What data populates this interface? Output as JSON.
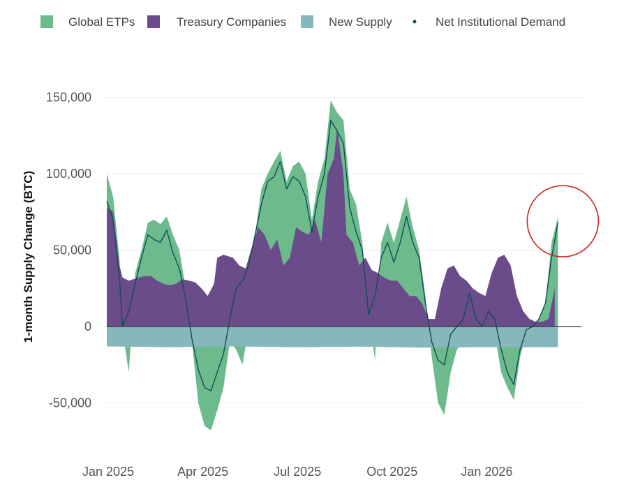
{
  "chart_data": {
    "type": "area",
    "ylabel": "1-month Supply Change (BTC)",
    "ylim": [
      -70000,
      160000
    ],
    "y_ticks": [
      {
        "value": 150000,
        "label": "150,000"
      },
      {
        "value": 100000,
        "label": "100,000"
      },
      {
        "value": 50000,
        "label": "50,000"
      },
      {
        "value": 0,
        "label": "0"
      },
      {
        "value": -50000,
        "label": "-50,000"
      }
    ],
    "x_ticks": [
      {
        "month": 0,
        "label": "Jan 2025"
      },
      {
        "month": 3,
        "label": "Apr 2025"
      },
      {
        "month": 6,
        "label": "Jul 2025"
      },
      {
        "month": 9,
        "label": "Oct 2025"
      },
      {
        "month": 12,
        "label": "Jan 2026"
      }
    ],
    "x_unit": "months since Jan 2025",
    "xlim": [
      0,
      15.5
    ],
    "legend": [
      {
        "name": "Global ETPs",
        "color": "#6dbb8d",
        "marker": "square"
      },
      {
        "name": "Treasury Companies",
        "color": "#6b4c8a",
        "marker": "square"
      },
      {
        "name": "New Supply",
        "color": "#86b7bd",
        "marker": "square"
      },
      {
        "name": "Net Institutional Demand",
        "color": "#0f4d52",
        "marker": "dot"
      }
    ],
    "series": [
      {
        "name": "Treasury Companies",
        "color": "#6b4c8a",
        "points": [
          [
            0,
            78000
          ],
          [
            0.2,
            75000
          ],
          [
            0.4,
            40000
          ],
          [
            0.5,
            32000
          ],
          [
            0.7,
            30000
          ],
          [
            1.0,
            32000
          ],
          [
            1.2,
            33000
          ],
          [
            1.4,
            33000
          ],
          [
            1.6,
            30000
          ],
          [
            1.8,
            28000
          ],
          [
            2.0,
            27000
          ],
          [
            2.2,
            28000
          ],
          [
            2.4,
            31000
          ],
          [
            2.6,
            30000
          ],
          [
            2.8,
            29000
          ],
          [
            3.0,
            25000
          ],
          [
            3.2,
            20000
          ],
          [
            3.4,
            28000
          ],
          [
            3.5,
            45000
          ],
          [
            3.7,
            47000
          ],
          [
            4.0,
            45000
          ],
          [
            4.2,
            40000
          ],
          [
            4.4,
            38000
          ],
          [
            4.6,
            52000
          ],
          [
            4.8,
            65000
          ],
          [
            5.0,
            60000
          ],
          [
            5.2,
            50000
          ],
          [
            5.4,
            57000
          ],
          [
            5.6,
            40000
          ],
          [
            5.8,
            45000
          ],
          [
            6.0,
            65000
          ],
          [
            6.2,
            62000
          ],
          [
            6.4,
            60000
          ],
          [
            6.6,
            70000
          ],
          [
            6.8,
            55000
          ],
          [
            7.0,
            100000
          ],
          [
            7.2,
            110000
          ],
          [
            7.3,
            130000
          ],
          [
            7.5,
            100000
          ],
          [
            7.6,
            60000
          ],
          [
            7.8,
            55000
          ],
          [
            8.0,
            40000
          ],
          [
            8.2,
            45000
          ],
          [
            8.4,
            37000
          ],
          [
            8.6,
            35000
          ],
          [
            8.8,
            32000
          ],
          [
            9.0,
            30000
          ],
          [
            9.2,
            30000
          ],
          [
            9.4,
            25000
          ],
          [
            9.6,
            20000
          ],
          [
            9.8,
            20000
          ],
          [
            10.0,
            15000
          ],
          [
            10.2,
            5000
          ],
          [
            10.4,
            5000
          ],
          [
            10.6,
            25000
          ],
          [
            10.8,
            38000
          ],
          [
            11.0,
            40000
          ],
          [
            11.2,
            33000
          ],
          [
            11.4,
            30000
          ],
          [
            11.6,
            25000
          ],
          [
            11.8,
            22000
          ],
          [
            12.0,
            20000
          ],
          [
            12.2,
            35000
          ],
          [
            12.4,
            45000
          ],
          [
            12.6,
            47000
          ],
          [
            12.8,
            40000
          ],
          [
            13.0,
            20000
          ],
          [
            13.2,
            10000
          ],
          [
            13.4,
            5000
          ],
          [
            13.6,
            3000
          ],
          [
            13.8,
            3000
          ],
          [
            14.0,
            5000
          ],
          [
            14.2,
            25000
          ]
        ]
      },
      {
        "name": "Global ETPs",
        "color": "#6dbb8d",
        "points": [
          [
            0,
            100000
          ],
          [
            0.2,
            85000
          ],
          [
            0.4,
            45000
          ],
          [
            0.5,
            -3000
          ],
          [
            0.7,
            -30000
          ],
          [
            0.9,
            35000
          ],
          [
            1.1,
            50000
          ],
          [
            1.3,
            68000
          ],
          [
            1.5,
            70000
          ],
          [
            1.7,
            67000
          ],
          [
            1.9,
            72000
          ],
          [
            2.1,
            60000
          ],
          [
            2.3,
            50000
          ],
          [
            2.5,
            25000
          ],
          [
            2.7,
            -10000
          ],
          [
            2.9,
            -50000
          ],
          [
            3.1,
            -65000
          ],
          [
            3.3,
            -68000
          ],
          [
            3.5,
            -55000
          ],
          [
            3.7,
            -40000
          ],
          [
            3.9,
            -10000
          ],
          [
            4.1,
            -15000
          ],
          [
            4.3,
            -25000
          ],
          [
            4.5,
            0
          ],
          [
            4.7,
            60000
          ],
          [
            4.9,
            90000
          ],
          [
            5.1,
            100000
          ],
          [
            5.3,
            108000
          ],
          [
            5.5,
            115000
          ],
          [
            5.7,
            95000
          ],
          [
            5.9,
            105000
          ],
          [
            6.1,
            108000
          ],
          [
            6.3,
            100000
          ],
          [
            6.5,
            70000
          ],
          [
            6.7,
            95000
          ],
          [
            6.9,
            110000
          ],
          [
            7.1,
            148000
          ],
          [
            7.3,
            140000
          ],
          [
            7.5,
            135000
          ],
          [
            7.7,
            90000
          ],
          [
            7.9,
            80000
          ],
          [
            8.1,
            55000
          ],
          [
            8.3,
            10000
          ],
          [
            8.5,
            -22000
          ],
          [
            8.7,
            55000
          ],
          [
            8.9,
            68000
          ],
          [
            9.1,
            55000
          ],
          [
            9.3,
            70000
          ],
          [
            9.5,
            85000
          ],
          [
            9.7,
            65000
          ],
          [
            9.9,
            50000
          ],
          [
            10.1,
            20000
          ],
          [
            10.3,
            -20000
          ],
          [
            10.5,
            -50000
          ],
          [
            10.7,
            -58000
          ],
          [
            10.9,
            -30000
          ],
          [
            11.1,
            -15000
          ],
          [
            11.3,
            -10000
          ],
          [
            11.5,
            25000
          ],
          [
            11.7,
            -8000
          ],
          [
            11.9,
            -12000
          ],
          [
            12.1,
            5000
          ],
          [
            12.3,
            -5000
          ],
          [
            12.5,
            -30000
          ],
          [
            12.7,
            -40000
          ],
          [
            12.9,
            -48000
          ],
          [
            13.1,
            -20000
          ],
          [
            13.3,
            -5000
          ],
          [
            13.5,
            -2000
          ],
          [
            13.7,
            5000
          ],
          [
            13.9,
            15000
          ],
          [
            14.1,
            55000
          ],
          [
            14.3,
            72000
          ]
        ]
      },
      {
        "name": "New Supply",
        "color": "#86b7bd",
        "points": [
          [
            0,
            -13000
          ],
          [
            2,
            -13500
          ],
          [
            4,
            -13000
          ],
          [
            6,
            -13500
          ],
          [
            8,
            -13200
          ],
          [
            10,
            -13800
          ],
          [
            12,
            -13500
          ],
          [
            14.3,
            -13500
          ]
        ]
      },
      {
        "name": "Net Institutional Demand",
        "color": "#0f4d52",
        "points": [
          [
            0,
            82000
          ],
          [
            0.2,
            70000
          ],
          [
            0.4,
            32000
          ],
          [
            0.5,
            0
          ],
          [
            0.7,
            10000
          ],
          [
            0.9,
            28000
          ],
          [
            1.1,
            45000
          ],
          [
            1.3,
            60000
          ],
          [
            1.5,
            57000
          ],
          [
            1.7,
            55000
          ],
          [
            1.9,
            63000
          ],
          [
            2.1,
            48000
          ],
          [
            2.3,
            38000
          ],
          [
            2.5,
            18000
          ],
          [
            2.7,
            -8000
          ],
          [
            2.9,
            -28000
          ],
          [
            3.1,
            -40000
          ],
          [
            3.3,
            -42000
          ],
          [
            3.5,
            -30000
          ],
          [
            3.7,
            -18000
          ],
          [
            3.9,
            5000
          ],
          [
            4.1,
            25000
          ],
          [
            4.3,
            30000
          ],
          [
            4.5,
            40000
          ],
          [
            4.7,
            60000
          ],
          [
            4.9,
            80000
          ],
          [
            5.1,
            95000
          ],
          [
            5.3,
            98000
          ],
          [
            5.5,
            108000
          ],
          [
            5.7,
            90000
          ],
          [
            5.9,
            98000
          ],
          [
            6.1,
            95000
          ],
          [
            6.3,
            85000
          ],
          [
            6.5,
            62000
          ],
          [
            6.7,
            85000
          ],
          [
            6.9,
            100000
          ],
          [
            7.1,
            135000
          ],
          [
            7.3,
            128000
          ],
          [
            7.5,
            120000
          ],
          [
            7.7,
            78000
          ],
          [
            7.9,
            62000
          ],
          [
            8.1,
            50000
          ],
          [
            8.3,
            8000
          ],
          [
            8.5,
            20000
          ],
          [
            8.7,
            45000
          ],
          [
            8.9,
            55000
          ],
          [
            9.1,
            42000
          ],
          [
            9.3,
            55000
          ],
          [
            9.5,
            72000
          ],
          [
            9.7,
            55000
          ],
          [
            9.9,
            45000
          ],
          [
            10.1,
            15000
          ],
          [
            10.3,
            -10000
          ],
          [
            10.5,
            -22000
          ],
          [
            10.7,
            -25000
          ],
          [
            10.9,
            -5000
          ],
          [
            11.1,
            0
          ],
          [
            11.3,
            5000
          ],
          [
            11.5,
            22000
          ],
          [
            11.7,
            5000
          ],
          [
            11.9,
            0
          ],
          [
            12.1,
            10000
          ],
          [
            12.3,
            5000
          ],
          [
            12.5,
            -15000
          ],
          [
            12.7,
            -30000
          ],
          [
            12.9,
            -38000
          ],
          [
            13.1,
            -15000
          ],
          [
            13.3,
            -2000
          ],
          [
            13.5,
            0
          ],
          [
            13.7,
            5000
          ],
          [
            13.9,
            15000
          ],
          [
            14.1,
            45000
          ],
          [
            14.3,
            68000
          ]
        ]
      }
    ],
    "annotations": [
      {
        "type": "circle",
        "color": "#cc2222",
        "center_month": 14.3,
        "center_value": 68000
      }
    ]
  }
}
